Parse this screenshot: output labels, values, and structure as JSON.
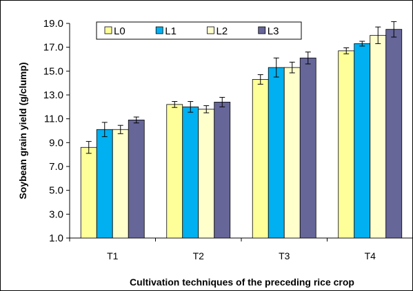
{
  "chart_data": {
    "type": "bar",
    "title": "",
    "xlabel": "Cultivation techniques of the preceding rice crop",
    "ylabel": "Soybean grain yield (g/clump)",
    "ylim": [
      1.0,
      19.0
    ],
    "yticks": [
      "1.0",
      "3.0",
      "5.0",
      "7.0",
      "9.0",
      "11.0",
      "13.0",
      "15.0",
      "17.0",
      "19.0"
    ],
    "categories": [
      "T1",
      "T2",
      "T3",
      "T4"
    ],
    "legend_position": "top-center",
    "grid": false,
    "series": [
      {
        "name": "L0",
        "color": "#FFFF99",
        "values": [
          8.6,
          12.2,
          14.3,
          16.7
        ],
        "errors": [
          0.5,
          0.25,
          0.4,
          0.25
        ]
      },
      {
        "name": "L1",
        "color": "#00B0F0",
        "values": [
          10.1,
          12.0,
          15.3,
          17.3
        ],
        "errors": [
          0.6,
          0.45,
          0.8,
          0.2
        ]
      },
      {
        "name": "L2",
        "color": "#FFFFCC",
        "values": [
          10.1,
          11.8,
          15.3,
          18.0
        ],
        "errors": [
          0.35,
          0.3,
          0.45,
          0.7
        ]
      },
      {
        "name": "L3",
        "color": "#666699",
        "values": [
          10.9,
          12.4,
          16.1,
          18.5
        ],
        "errors": [
          0.25,
          0.4,
          0.5,
          0.65
        ]
      }
    ]
  }
}
